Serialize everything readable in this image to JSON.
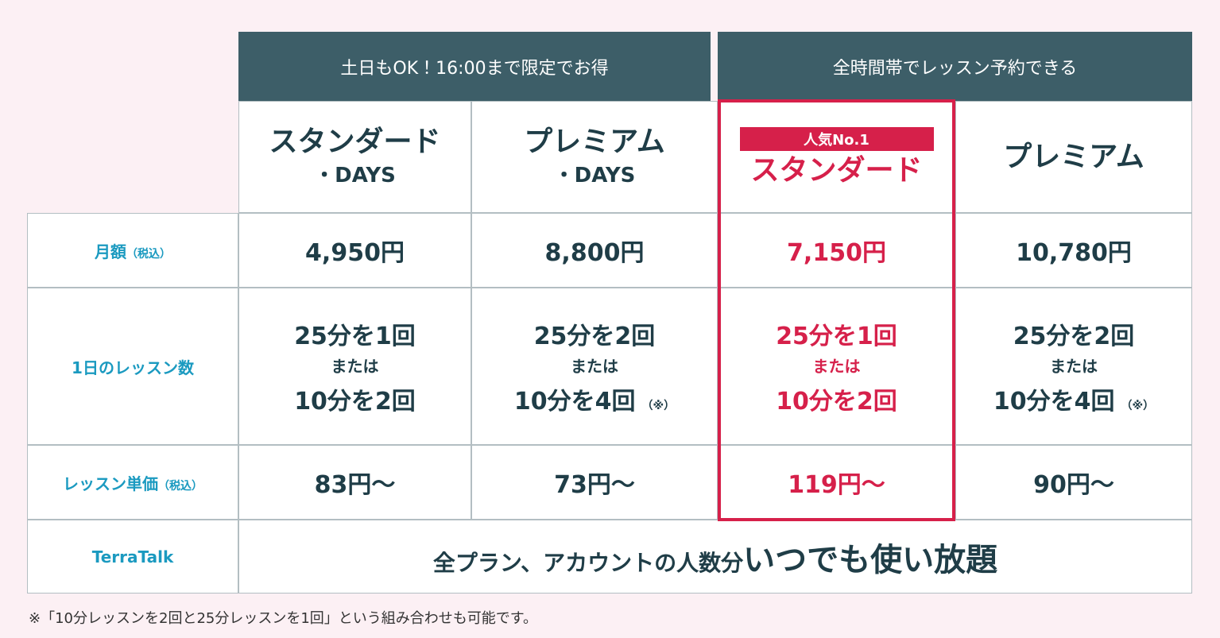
{
  "groups": [
    "土日もOK！16:00まで限定でお得",
    "全時間帯でレッスン予約できる"
  ],
  "plans": [
    {
      "name": "スタンダード",
      "sub": "・DAYS"
    },
    {
      "name": "プレミアム",
      "sub": "・DAYS"
    },
    {
      "badge": "人気No.1",
      "name": "スタンダード"
    },
    {
      "name": "プレミアム"
    }
  ],
  "rows": [
    {
      "label": "月額",
      "label_note": "（税込）",
      "cells": [
        "4,950円",
        "8,800円",
        "7,150円",
        "10,780円"
      ]
    },
    {
      "label": "1日のレッスン数",
      "cells": [
        {
          "lines": [
            "25分を1回",
            "または",
            "10分を2回"
          ]
        },
        {
          "lines": [
            "25分を2回",
            "または",
            "10分を4回"
          ],
          "note": "（※）"
        },
        {
          "lines": [
            "25分を1回",
            "または",
            "10分を2回"
          ]
        },
        {
          "lines": [
            "25分を2回",
            "または",
            "10分を4回"
          ],
          "note": "（※）"
        }
      ]
    },
    {
      "label": "レッスン単価",
      "label_note": "（税込）",
      "cells": [
        "83円～",
        "73円～",
        "119円～",
        "90円～"
      ]
    }
  ],
  "terratalk": {
    "label": "TerraTalk",
    "text": "全プラン、アカウントの人数分",
    "emphasis": "いつでも使い放題"
  },
  "footnote": "※「10分レッスンを2回と25分レッスンを1回」という組み合わせも可能です。"
}
